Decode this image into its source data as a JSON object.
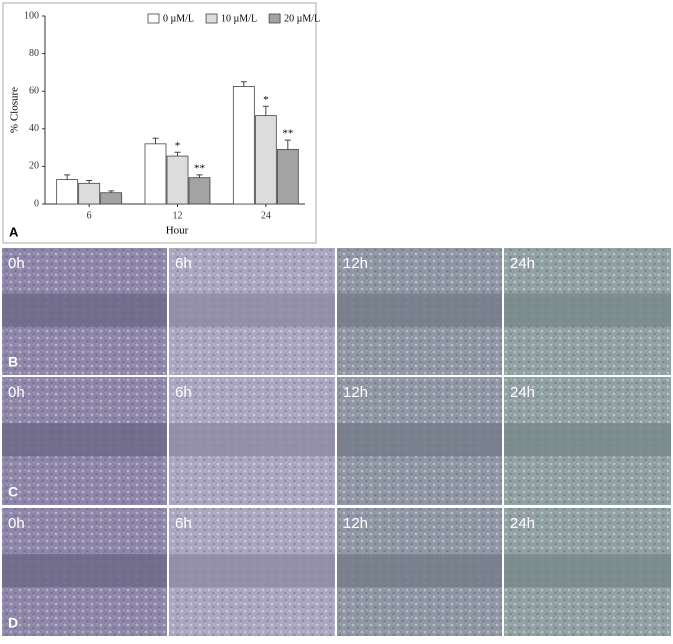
{
  "chart_data": {
    "type": "bar",
    "panel_label": "A",
    "ylabel": "% Closure",
    "xlabel": "Hour",
    "categories": [
      "6",
      "12",
      "24"
    ],
    "series": [
      {
        "name": "0 µM/L",
        "color": "#ffffff",
        "values": [
          13,
          32,
          62.5
        ],
        "errors": [
          2.5,
          3,
          2.5
        ],
        "significance": [
          null,
          null,
          null
        ]
      },
      {
        "name": "10 µM/L",
        "color": "#dcdcdc",
        "values": [
          11,
          25.5,
          47
        ],
        "errors": [
          1.5,
          2,
          5
        ],
        "significance": [
          null,
          "*",
          "*"
        ]
      },
      {
        "name": "20 µM/L",
        "color": "#a3a3a3",
        "values": [
          6,
          14,
          29
        ],
        "errors": [
          1,
          1.5,
          5
        ],
        "significance": [
          null,
          "**",
          "**"
        ]
      }
    ],
    "ylim": [
      0,
      100
    ],
    "yticks": [
      0,
      20,
      40,
      60,
      80,
      100
    ],
    "legend": "top-right"
  },
  "panels": [
    {
      "label": "B",
      "images": [
        "0h",
        "6h",
        "12h",
        "24h"
      ]
    },
    {
      "label": "C",
      "images": [
        "0h",
        "6h",
        "12h",
        "24h"
      ]
    },
    {
      "label": "D",
      "images": [
        "0h",
        "6h",
        "12h",
        "24h"
      ]
    }
  ]
}
